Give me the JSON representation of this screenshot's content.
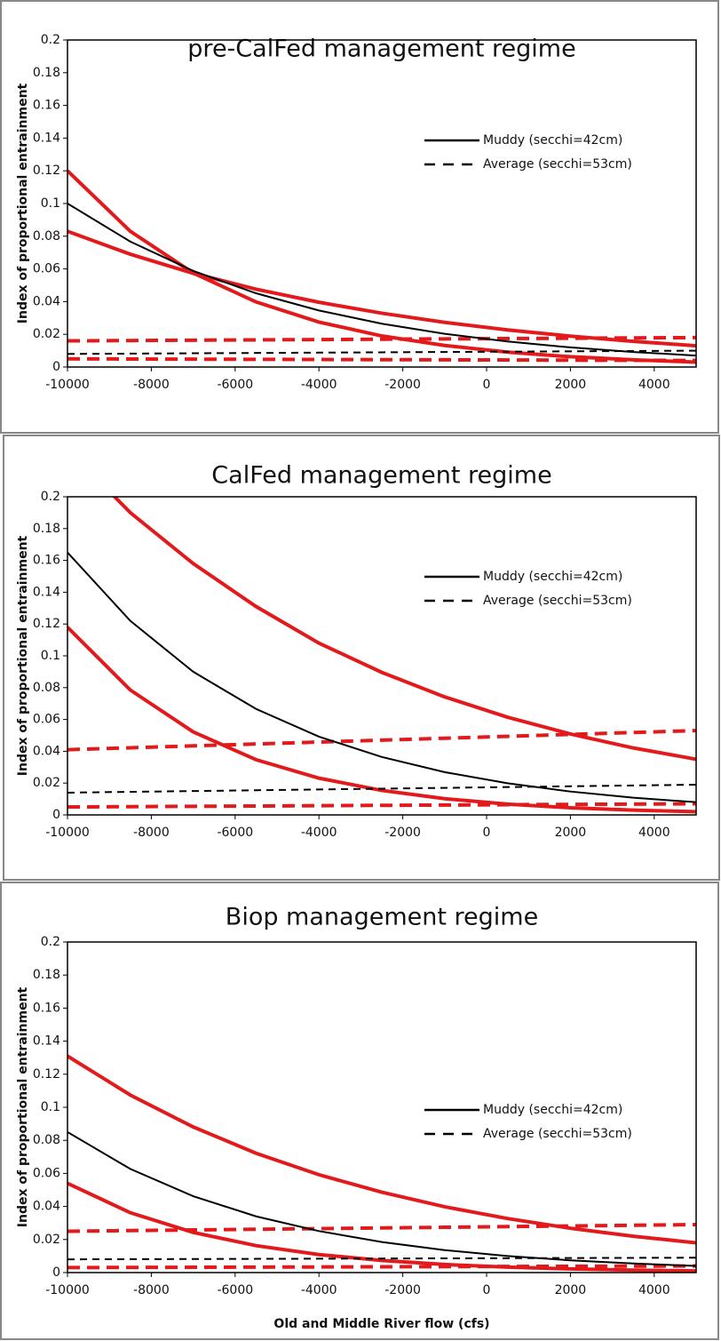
{
  "chart_data": [
    {
      "type": "line",
      "title": "pre-CalFed management regime",
      "ylabel": "Index of proportional entrainment",
      "x": [
        -10000,
        -8500,
        -7000,
        -5500,
        -4000,
        -2500,
        -1000,
        500,
        2000,
        3500,
        5000
      ],
      "xlim": [
        -10000,
        5000
      ],
      "xticks": [
        -10000,
        -8000,
        -6000,
        -4000,
        -2000,
        0,
        2000,
        4000
      ],
      "ylim": [
        0,
        0.2
      ],
      "yticks": [
        0,
        0.02,
        0.04,
        0.06,
        0.08,
        0.1,
        0.12,
        0.14,
        0.16,
        0.18,
        0.2
      ],
      "series": [
        {
          "name": "Muddy (secchi=42cm)",
          "color": "#000000",
          "style": "solid",
          "values": [
            0.1,
            0.0767,
            0.0588,
            0.0451,
            0.0346,
            0.0265,
            0.0203,
            0.0156,
            0.012,
            0.0092,
            0.007
          ]
        },
        {
          "name": "Average (secchi=53cm)",
          "color": "#000000",
          "style": "dashed",
          "values": [
            0.008,
            0.0082,
            0.0084,
            0.0086,
            0.0088,
            0.009,
            0.0092,
            0.0094,
            0.0096,
            0.0098,
            0.01
          ]
        },
        {
          "color": "#e31a1c",
          "style": "solid",
          "values": [
            0.12,
            0.083,
            0.0575,
            0.0398,
            0.0275,
            0.019,
            0.0132,
            0.0091,
            0.0063,
            0.0044,
            0.003
          ]
        },
        {
          "color": "#e31a1c",
          "style": "solid",
          "values": [
            0.083,
            0.069,
            0.0573,
            0.0476,
            0.0396,
            0.0329,
            0.0273,
            0.0227,
            0.0189,
            0.0157,
            0.013
          ]
        },
        {
          "color": "#e31a1c",
          "style": "dashed",
          "values": [
            0.016,
            0.0162,
            0.0164,
            0.0166,
            0.0168,
            0.017,
            0.0172,
            0.0174,
            0.0176,
            0.0178,
            0.018
          ]
        },
        {
          "color": "#e31a1c",
          "style": "dashed",
          "values": [
            0.005,
            0.0049,
            0.0048,
            0.0047,
            0.0046,
            0.0045,
            0.0044,
            0.0043,
            0.0042,
            0.0041,
            0.004
          ]
        }
      ]
    },
    {
      "type": "line",
      "title": "CalFed management regime",
      "ylabel": "Index of proportional entrainment",
      "x": [
        -10000,
        -8500,
        -7000,
        -5500,
        -4000,
        -2500,
        -1000,
        500,
        2000,
        3500,
        5000
      ],
      "xlim": [
        -10000,
        5000
      ],
      "xticks": [
        -10000,
        -8000,
        -6000,
        -4000,
        -2000,
        0,
        2000,
        4000
      ],
      "ylim": [
        0,
        0.2
      ],
      "yticks": [
        0,
        0.02,
        0.04,
        0.06,
        0.08,
        0.1,
        0.12,
        0.14,
        0.16,
        0.18,
        0.2
      ],
      "series": [
        {
          "name": "Muddy (secchi=42cm)",
          "color": "#000000",
          "style": "solid",
          "values": [
            0.165,
            0.122,
            0.09,
            0.0666,
            0.0492,
            0.0364,
            0.0269,
            0.0199,
            0.0147,
            0.0108,
            0.008
          ]
        },
        {
          "name": "Average (secchi=53cm)",
          "color": "#000000",
          "style": "dashed",
          "values": [
            0.014,
            0.0145,
            0.015,
            0.0155,
            0.016,
            0.0165,
            0.017,
            0.0175,
            0.018,
            0.0185,
            0.019
          ]
        },
        {
          "color": "#e31a1c",
          "style": "solid",
          "values": [
            0.23,
            0.19,
            0.158,
            0.131,
            0.108,
            0.0896,
            0.0742,
            0.0614,
            0.0509,
            0.0421,
            0.035
          ]
        },
        {
          "color": "#e31a1c",
          "style": "solid",
          "values": [
            0.118,
            0.0785,
            0.0522,
            0.0347,
            0.0231,
            0.0154,
            0.0102,
            0.0068,
            0.0045,
            0.003,
            0.002
          ]
        },
        {
          "color": "#e31a1c",
          "style": "dashed",
          "values": [
            0.041,
            0.0422,
            0.0434,
            0.0446,
            0.0458,
            0.047,
            0.0482,
            0.0494,
            0.0506,
            0.0518,
            0.053
          ]
        },
        {
          "color": "#e31a1c",
          "style": "dashed",
          "values": [
            0.005,
            0.0052,
            0.0054,
            0.0056,
            0.0058,
            0.006,
            0.0062,
            0.0064,
            0.0066,
            0.0068,
            0.007
          ]
        }
      ]
    },
    {
      "type": "line",
      "title": "Biop management regime",
      "ylabel": "Index of proportional entrainment",
      "xlabel": "Old and Middle River flow (cfs)",
      "x": [
        -10000,
        -8500,
        -7000,
        -5500,
        -4000,
        -2500,
        -1000,
        500,
        2000,
        3500,
        5000
      ],
      "xlim": [
        -10000,
        5000
      ],
      "xticks": [
        -10000,
        -8000,
        -6000,
        -4000,
        -2000,
        0,
        2000,
        4000
      ],
      "ylim": [
        0,
        0.2
      ],
      "yticks": [
        0,
        0.02,
        0.04,
        0.06,
        0.08,
        0.1,
        0.12,
        0.14,
        0.16,
        0.18,
        0.2
      ],
      "series": [
        {
          "name": "Muddy (secchi=42cm)",
          "color": "#000000",
          "style": "solid",
          "values": [
            0.085,
            0.0627,
            0.0462,
            0.034,
            0.0251,
            0.0185,
            0.0136,
            0.01,
            0.0074,
            0.0055,
            0.004
          ]
        },
        {
          "name": "Average (secchi=53cm)",
          "color": "#000000",
          "style": "dashed",
          "values": [
            0.008,
            0.0081,
            0.0082,
            0.0083,
            0.0084,
            0.0085,
            0.0086,
            0.0087,
            0.0088,
            0.0089,
            0.009
          ]
        },
        {
          "color": "#e31a1c",
          "style": "solid",
          "values": [
            0.131,
            0.1074,
            0.0881,
            0.0722,
            0.0592,
            0.0486,
            0.0398,
            0.0327,
            0.0268,
            0.022,
            0.018
          ]
        },
        {
          "color": "#e31a1c",
          "style": "solid",
          "values": [
            0.054,
            0.0362,
            0.0243,
            0.0163,
            0.0109,
            0.0073,
            0.0049,
            0.0033,
            0.0022,
            0.0015,
            0.001
          ]
        },
        {
          "color": "#e31a1c",
          "style": "dashed",
          "values": [
            0.025,
            0.0254,
            0.0258,
            0.0262,
            0.0266,
            0.027,
            0.0274,
            0.0278,
            0.0282,
            0.0286,
            0.029
          ]
        },
        {
          "color": "#e31a1c",
          "style": "dashed",
          "values": [
            0.003,
            0.0031,
            0.0032,
            0.0033,
            0.0034,
            0.0035,
            0.0036,
            0.0037,
            0.0038,
            0.0039,
            0.004
          ]
        }
      ]
    }
  ]
}
